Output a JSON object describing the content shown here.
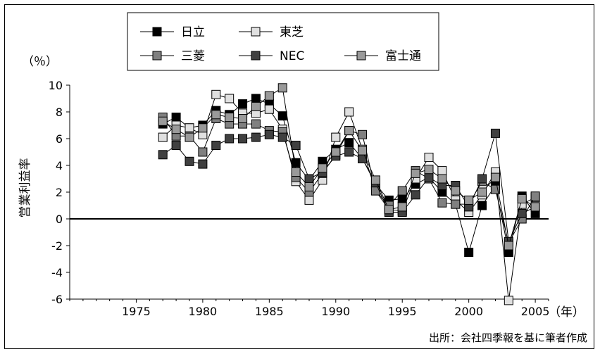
{
  "chart_data": {
    "type": "line",
    "ylabel": "営業利益率",
    "yunit": "（％）",
    "xunit": "（年）",
    "source": "出所：会社四季報を基に筆者作成",
    "xlim": [
      1970,
      2006
    ],
    "ylim": [
      -6,
      10
    ],
    "xticks": [
      1975,
      1980,
      1985,
      1990,
      1995,
      2000,
      2005
    ],
    "yticks": [
      10,
      8,
      6,
      4,
      2,
      0,
      -2,
      -4,
      -6
    ],
    "x": [
      1977,
      1978,
      1979,
      1980,
      1981,
      1982,
      1983,
      1984,
      1985,
      1986,
      1987,
      1988,
      1989,
      1990,
      1991,
      1992,
      1993,
      1994,
      1995,
      1996,
      1997,
      1998,
      1999,
      2000,
      2001,
      2002,
      2003,
      2004,
      2005
    ],
    "legend_placement": "top-center",
    "series": [
      {
        "name": "日立",
        "color": "#000000",
        "values": [
          7.1,
          7.6,
          6.8,
          7.0,
          8.1,
          7.8,
          8.6,
          9.0,
          8.6,
          7.7,
          4.2,
          2.9,
          4.3,
          5.2,
          5.7,
          4.5,
          2.6,
          1.4,
          1.5,
          2.6,
          3.1,
          2.0,
          1.1,
          -2.5,
          1.0,
          2.5,
          -2.5,
          1.7,
          0.4
        ]
      },
      {
        "name": "東芝",
        "color": "#e0e0e0",
        "values": [
          6.1,
          7.0,
          6.8,
          6.3,
          9.3,
          9.0,
          7.9,
          7.9,
          8.2,
          6.7,
          2.8,
          1.4,
          2.9,
          6.1,
          8.0,
          5.2,
          2.1,
          0.7,
          0.6,
          3.0,
          4.6,
          3.6,
          1.4,
          0.5,
          1.8,
          3.5,
          -6.1,
          1.1,
          1.6
        ]
      },
      {
        "name": "三菱",
        "color": "#808080",
        "values": [
          7.6,
          6.2,
          6.2,
          5.0,
          7.5,
          7.1,
          7.1,
          7.1,
          6.6,
          6.5,
          3.1,
          2.0,
          3.4,
          4.8,
          6.6,
          6.3,
          2.1,
          1.0,
          2.1,
          3.6,
          3.0,
          1.2,
          1.1,
          1.1,
          2.8,
          2.2,
          -1.8,
          0.0,
          1.7
        ]
      },
      {
        "name": "NEC",
        "color": "#404040",
        "values": [
          4.8,
          5.5,
          4.3,
          4.1,
          5.5,
          6.0,
          6.0,
          6.1,
          6.3,
          6.1,
          5.5,
          3.0,
          3.5,
          4.7,
          5.0,
          4.5,
          2.7,
          0.5,
          0.5,
          1.8,
          3.1,
          2.5,
          2.5,
          0.9,
          3.0,
          6.4,
          -1.7,
          0.4,
          0.9
        ]
      },
      {
        "name": "富士通",
        "color": "#9a9a9a",
        "values": [
          7.3,
          6.7,
          6.1,
          6.8,
          7.8,
          7.6,
          7.5,
          8.4,
          9.2,
          9.8,
          3.5,
          2.4,
          3.8,
          5.0,
          6.6,
          5.1,
          2.9,
          0.7,
          0.9,
          3.4,
          3.7,
          3.0,
          2.1,
          1.4,
          2.0,
          3.1,
          -2.0,
          1.5,
          0.9
        ]
      }
    ]
  }
}
